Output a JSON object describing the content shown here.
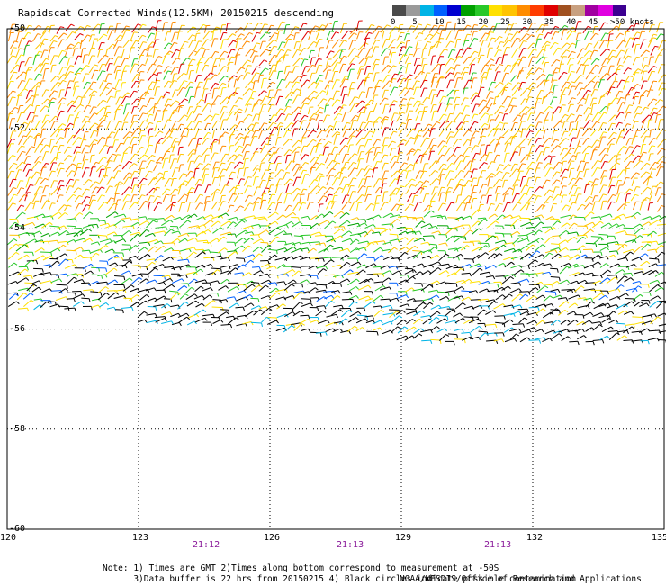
{
  "title": "Rapidscat Corrected Winds(12.5KM) 20150215 descending",
  "colorbar": {
    "colors": [
      "#4a4a4a",
      "#9a9a9a",
      "#00b4e6",
      "#0060ff",
      "#0000d0",
      "#00a000",
      "#28c828",
      "#ffe000",
      "#ffc400",
      "#ff8c00",
      "#ff3c00",
      "#e00000",
      "#a05020",
      "#c8a080",
      "#a000a0",
      "#e000e0",
      "#3c0090"
    ],
    "labels": [
      "0",
      "5",
      "10",
      "15",
      "20",
      "25",
      "30",
      "35",
      "40",
      "45",
      ">50 knots"
    ]
  },
  "axes": {
    "lat_labels": [
      "-50",
      "-52",
      "-54",
      "-56",
      "-58",
      "-60"
    ],
    "lon_labels": [
      "120",
      "123",
      "126",
      "129",
      "132",
      "135"
    ],
    "time_labels": [
      "21:12",
      "21:13",
      "21:13"
    ]
  },
  "map_data": {
    "lat_range": [
      -60,
      -50
    ],
    "lon_range": [
      120,
      135
    ],
    "grid": true,
    "wind_bands": [
      {
        "lat_from": -50,
        "lat_to": -52,
        "speed_knots": [
          20,
          30
        ]
      },
      {
        "lat_from": -52,
        "lat_to": -54,
        "speed_knots": [
          20,
          30
        ]
      },
      {
        "lat_from": -54,
        "lat_to": -55,
        "speed_knots": [
          10,
          20
        ]
      },
      {
        "lat_from": -55,
        "lat_to": -56.5,
        "speed_knots": [
          0,
          15
        ]
      }
    ]
  },
  "notes": {
    "line1": "Note: 1) Times are GMT 2)Times along bottom correspond to measurement at -50S",
    "line2": "      3)Data buffer is 22 hrs from 20150215 4) Black circles indicate possible contamination"
  },
  "credit": "NOAA/NESDIS/Office of Research and Applications"
}
